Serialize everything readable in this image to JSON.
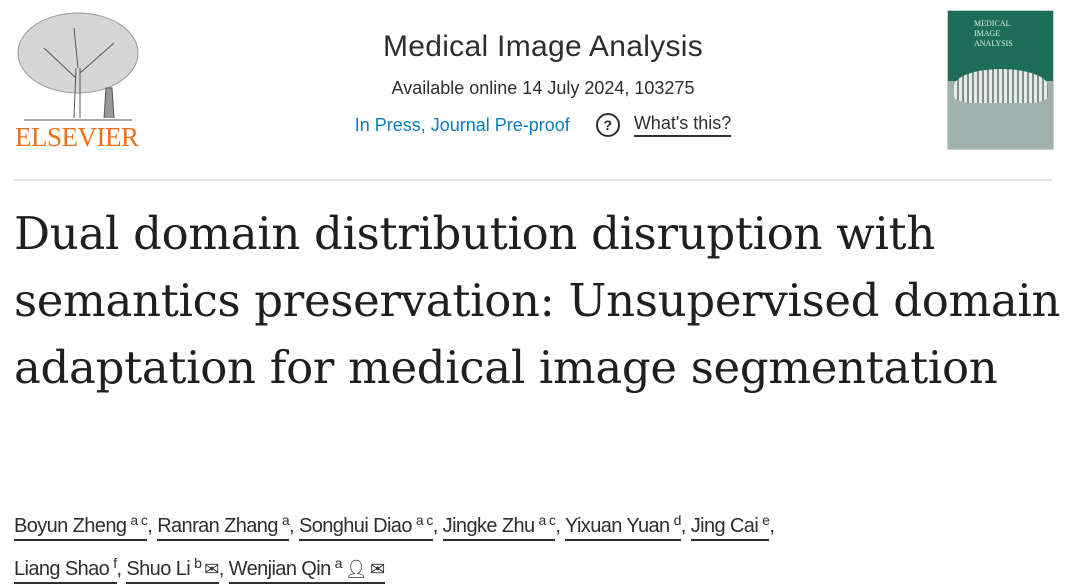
{
  "publisher": {
    "logo_text": "ELSEVIER"
  },
  "header": {
    "journal": "Medical Image Analysis",
    "available": "Available online 14 July 2024, 103275",
    "status": "In Press, Journal Pre-proof",
    "help_link": "What's this?"
  },
  "cover": {
    "lines": [
      "MEDICAL",
      "IMAGE",
      "ANALYSIS"
    ]
  },
  "article": {
    "title": "Dual domain distribution disruption with semantics preservation: Unsupervised domain adaptation for medical image segmentation",
    "authors": [
      {
        "name": "Boyun Zheng",
        "aff": "a c"
      },
      {
        "name": "Ranran Zhang",
        "aff": "a"
      },
      {
        "name": "Songhui Diao",
        "aff": "a c"
      },
      {
        "name": "Jingke Zhu",
        "aff": "a c"
      },
      {
        "name": "Yixuan Yuan",
        "aff": "d"
      },
      {
        "name": "Jing Cai",
        "aff": "e"
      },
      {
        "name": "Liang Shao",
        "aff": "f"
      },
      {
        "name": "Shuo Li",
        "aff": "b"
      },
      {
        "name": "Wenjian Qin",
        "aff": "a"
      }
    ]
  },
  "colors": {
    "logo": "#e9711c",
    "link": "#0c7dbb",
    "cover": "#1d6e59"
  }
}
